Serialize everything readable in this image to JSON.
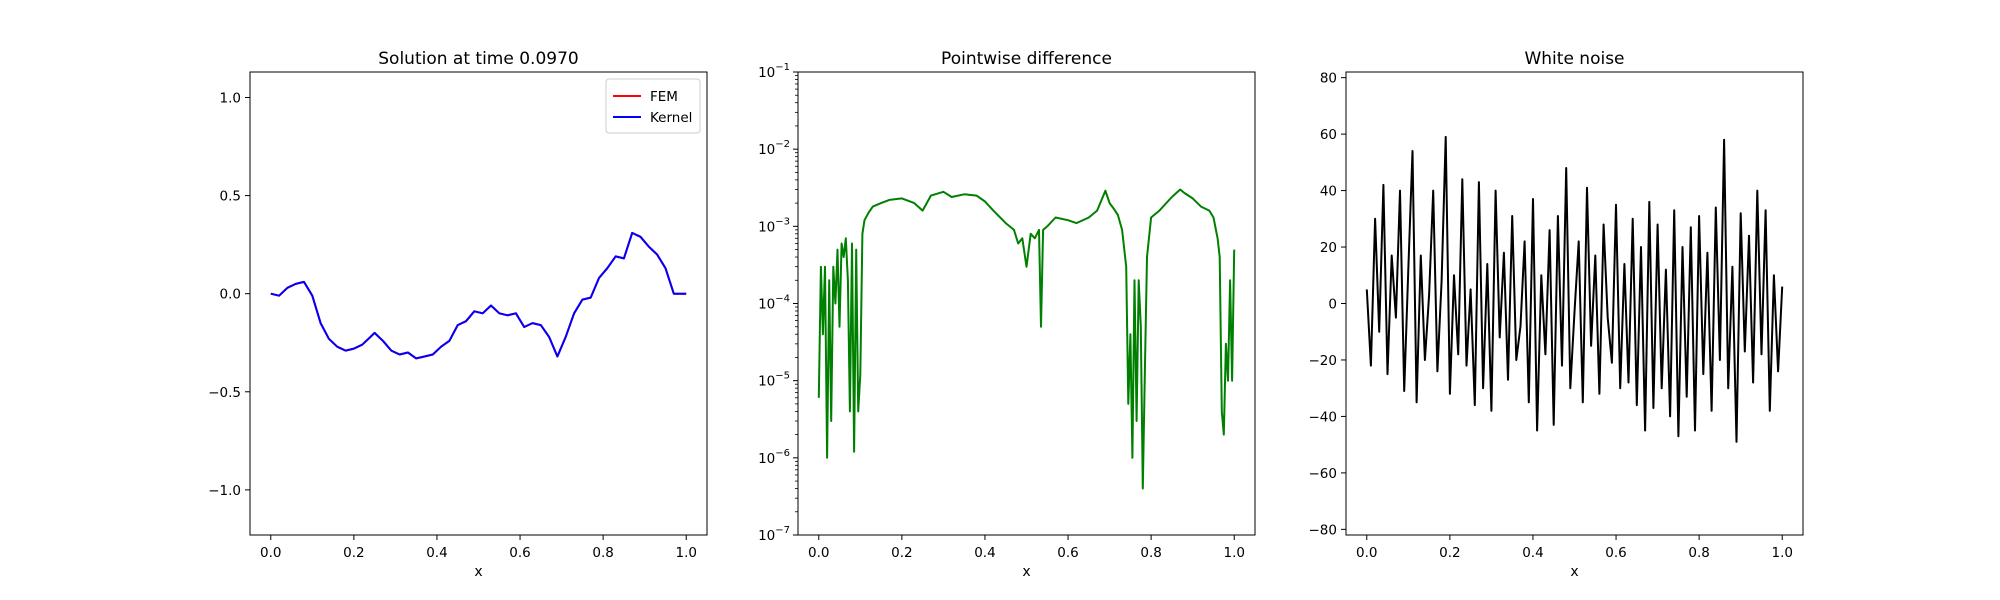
{
  "chart_data": [
    {
      "type": "line",
      "title": "Solution at time 0.0970",
      "xlabel": "x",
      "ylabel": "",
      "xlim": [
        -0.05,
        1.05
      ],
      "ylim": [
        -1.23,
        1.13
      ],
      "xticks": [
        0.0,
        0.2,
        0.4,
        0.6,
        0.8,
        1.0
      ],
      "xtick_labels": [
        "0.0",
        "0.2",
        "0.4",
        "0.6",
        "0.8",
        "1.0"
      ],
      "yticks": [
        -1.0,
        -0.5,
        0.0,
        0.5,
        1.0
      ],
      "ytick_labels": [
        "−1.0",
        "−0.5",
        "0.0",
        "0.5",
        "1.0"
      ],
      "grid": false,
      "legend_position": "top-right",
      "x": [
        0.0,
        0.02,
        0.04,
        0.06,
        0.08,
        0.1,
        0.12,
        0.14,
        0.16,
        0.18,
        0.2,
        0.22,
        0.24,
        0.25,
        0.27,
        0.29,
        0.31,
        0.33,
        0.35,
        0.37,
        0.39,
        0.41,
        0.43,
        0.45,
        0.47,
        0.49,
        0.51,
        0.53,
        0.55,
        0.57,
        0.59,
        0.61,
        0.63,
        0.65,
        0.67,
        0.69,
        0.71,
        0.73,
        0.75,
        0.77,
        0.79,
        0.81,
        0.83,
        0.85,
        0.87,
        0.89,
        0.91,
        0.93,
        0.95,
        0.97,
        0.99,
        1.0
      ],
      "series": [
        {
          "name": "FEM",
          "color": "#ff0000",
          "values": [
            0.0,
            -0.01,
            0.03,
            0.05,
            0.06,
            -0.01,
            -0.15,
            -0.23,
            -0.27,
            -0.29,
            -0.28,
            -0.26,
            -0.22,
            -0.2,
            -0.24,
            -0.29,
            -0.31,
            -0.3,
            -0.33,
            -0.32,
            -0.31,
            -0.27,
            -0.24,
            -0.16,
            -0.14,
            -0.09,
            -0.1,
            -0.06,
            -0.1,
            -0.11,
            -0.1,
            -0.17,
            -0.15,
            -0.16,
            -0.22,
            -0.32,
            -0.22,
            -0.1,
            -0.03,
            -0.02,
            0.08,
            0.13,
            0.19,
            0.18,
            0.31,
            0.29,
            0.24,
            0.2,
            0.13,
            0.0,
            0.0,
            0.0
          ]
        },
        {
          "name": "Kernel",
          "color": "#0000ff",
          "values": [
            0.0,
            -0.01,
            0.03,
            0.05,
            0.06,
            -0.01,
            -0.15,
            -0.23,
            -0.27,
            -0.29,
            -0.28,
            -0.26,
            -0.22,
            -0.2,
            -0.24,
            -0.29,
            -0.31,
            -0.3,
            -0.33,
            -0.32,
            -0.31,
            -0.27,
            -0.24,
            -0.16,
            -0.14,
            -0.09,
            -0.1,
            -0.06,
            -0.1,
            -0.11,
            -0.1,
            -0.17,
            -0.15,
            -0.16,
            -0.22,
            -0.32,
            -0.22,
            -0.1,
            -0.03,
            -0.02,
            0.08,
            0.13,
            0.19,
            0.18,
            0.31,
            0.29,
            0.24,
            0.2,
            0.13,
            0.0,
            0.0,
            0.0
          ]
        }
      ]
    },
    {
      "type": "line",
      "title": "Pointwise difference",
      "xlabel": "x",
      "ylabel": "",
      "yscale": "log",
      "xlim": [
        -0.05,
        1.05
      ],
      "ylim": [
        1e-07,
        0.1
      ],
      "xticks": [
        0.0,
        0.2,
        0.4,
        0.6,
        0.8,
        1.0
      ],
      "xtick_labels": [
        "0.0",
        "0.2",
        "0.4",
        "0.6",
        "0.8",
        "1.0"
      ],
      "yticks": [
        1e-07,
        1e-06,
        1e-05,
        0.0001,
        0.001,
        0.01,
        0.1
      ],
      "ytick_bases": [
        "10",
        "10",
        "10",
        "10",
        "10",
        "10",
        "10"
      ],
      "ytick_exponents": [
        "−7",
        "−6",
        "−5",
        "−4",
        "−3",
        "−2",
        "−1"
      ],
      "grid": false,
      "x": [
        0.0,
        0.005,
        0.01,
        0.015,
        0.02,
        0.025,
        0.03,
        0.035,
        0.04,
        0.045,
        0.05,
        0.055,
        0.06,
        0.065,
        0.07,
        0.075,
        0.08,
        0.085,
        0.09,
        0.095,
        0.1,
        0.105,
        0.11,
        0.12,
        0.13,
        0.15,
        0.17,
        0.2,
        0.23,
        0.25,
        0.27,
        0.3,
        0.32,
        0.35,
        0.38,
        0.4,
        0.42,
        0.45,
        0.47,
        0.48,
        0.49,
        0.5,
        0.51,
        0.52,
        0.53,
        0.535,
        0.54,
        0.55,
        0.57,
        0.6,
        0.62,
        0.65,
        0.67,
        0.69,
        0.7,
        0.71,
        0.72,
        0.73,
        0.74,
        0.745,
        0.75,
        0.755,
        0.76,
        0.765,
        0.77,
        0.775,
        0.78,
        0.785,
        0.79,
        0.8,
        0.82,
        0.85,
        0.87,
        0.88,
        0.9,
        0.92,
        0.94,
        0.95,
        0.96,
        0.965,
        0.97,
        0.975,
        0.98,
        0.985,
        0.99,
        0.995,
        1.0
      ],
      "series": [
        {
          "name": "",
          "color": "#008000",
          "values": [
            6e-06,
            0.0003,
            4e-05,
            0.0003,
            1e-06,
            0.0002,
            3e-06,
            0.0003,
            0.0001,
            0.0005,
            5e-05,
            0.0006,
            0.0004,
            0.0007,
            0.0002,
            4e-06,
            0.0006,
            1.2e-06,
            0.0005,
            4e-06,
            1.2e-05,
            0.0008,
            0.0012,
            0.0015,
            0.0018,
            0.002,
            0.0022,
            0.0023,
            0.002,
            0.0016,
            0.0025,
            0.0028,
            0.0024,
            0.0026,
            0.0025,
            0.0021,
            0.0016,
            0.0011,
            0.0009,
            0.0006,
            0.0007,
            0.0003,
            0.0008,
            0.0007,
            0.0009,
            5e-05,
            0.0009,
            0.001,
            0.0013,
            0.0012,
            0.0011,
            0.0013,
            0.0016,
            0.0029,
            0.002,
            0.0017,
            0.0014,
            0.0009,
            0.0003,
            5e-06,
            4e-05,
            1e-06,
            0.0002,
            3e-06,
            0.0002,
            5e-05,
            4e-07,
            1.4e-05,
            0.0004,
            0.0013,
            0.0016,
            0.0024,
            0.003,
            0.0027,
            0.0023,
            0.0018,
            0.0016,
            0.0013,
            0.0007,
            0.0004,
            4e-06,
            2e-06,
            3e-05,
            1e-05,
            0.0002,
            1e-05,
            0.0005
          ]
        }
      ]
    },
    {
      "type": "line",
      "title": "White noise",
      "xlabel": "x",
      "ylabel": "",
      "xlim": [
        -0.05,
        1.05
      ],
      "ylim": [
        -82,
        82
      ],
      "xticks": [
        0.0,
        0.2,
        0.4,
        0.6,
        0.8,
        1.0
      ],
      "xtick_labels": [
        "0.0",
        "0.2",
        "0.4",
        "0.6",
        "0.8",
        "1.0"
      ],
      "yticks": [
        -80,
        -60,
        -40,
        -20,
        0,
        20,
        40,
        60,
        80
      ],
      "ytick_labels": [
        "−80",
        "−60",
        "−40",
        "−20",
        "0",
        "20",
        "40",
        "60",
        "80"
      ],
      "grid": false,
      "x": [
        0.0,
        0.01,
        0.02,
        0.03,
        0.04,
        0.05,
        0.06,
        0.07,
        0.08,
        0.09,
        0.1,
        0.11,
        0.12,
        0.13,
        0.14,
        0.15,
        0.16,
        0.17,
        0.18,
        0.19,
        0.2,
        0.21,
        0.22,
        0.23,
        0.24,
        0.25,
        0.26,
        0.27,
        0.28,
        0.29,
        0.3,
        0.31,
        0.32,
        0.33,
        0.34,
        0.35,
        0.36,
        0.37,
        0.38,
        0.39,
        0.4,
        0.41,
        0.42,
        0.43,
        0.44,
        0.45,
        0.46,
        0.47,
        0.48,
        0.49,
        0.5,
        0.51,
        0.52,
        0.53,
        0.54,
        0.55,
        0.56,
        0.57,
        0.58,
        0.59,
        0.6,
        0.61,
        0.62,
        0.63,
        0.64,
        0.65,
        0.66,
        0.67,
        0.68,
        0.69,
        0.7,
        0.71,
        0.72,
        0.73,
        0.74,
        0.75,
        0.76,
        0.77,
        0.78,
        0.79,
        0.8,
        0.81,
        0.82,
        0.83,
        0.84,
        0.85,
        0.86,
        0.87,
        0.88,
        0.89,
        0.9,
        0.91,
        0.92,
        0.93,
        0.94,
        0.95,
        0.96,
        0.97,
        0.98,
        0.99,
        1.0
      ],
      "series": [
        {
          "name": "",
          "color": "#000000",
          "values": [
            5,
            -22,
            30,
            -10,
            42,
            -25,
            17,
            -5,
            40,
            -31,
            12,
            54,
            -35,
            17,
            -20,
            3,
            40,
            -24,
            8,
            59,
            -32,
            10,
            -18,
            44,
            -22,
            5,
            -36,
            43,
            -30,
            14,
            -38,
            40,
            -12,
            18,
            -27,
            31,
            -20,
            -8,
            22,
            -35,
            37,
            -45,
            10,
            -18,
            26,
            -43,
            31,
            -22,
            48,
            -30,
            -3,
            22,
            -35,
            41,
            -15,
            17,
            -32,
            28,
            -5,
            -21,
            35,
            -30,
            14,
            -28,
            30,
            -36,
            20,
            -45,
            36,
            -37,
            28,
            -30,
            12,
            -40,
            33,
            -47,
            20,
            -33,
            27,
            -45,
            31,
            -25,
            18,
            -38,
            34,
            -20,
            58,
            -30,
            13,
            -49,
            32,
            -17,
            24,
            -28,
            40,
            -18,
            33,
            -38,
            10,
            -24,
            6
          ]
        }
      ]
    }
  ]
}
